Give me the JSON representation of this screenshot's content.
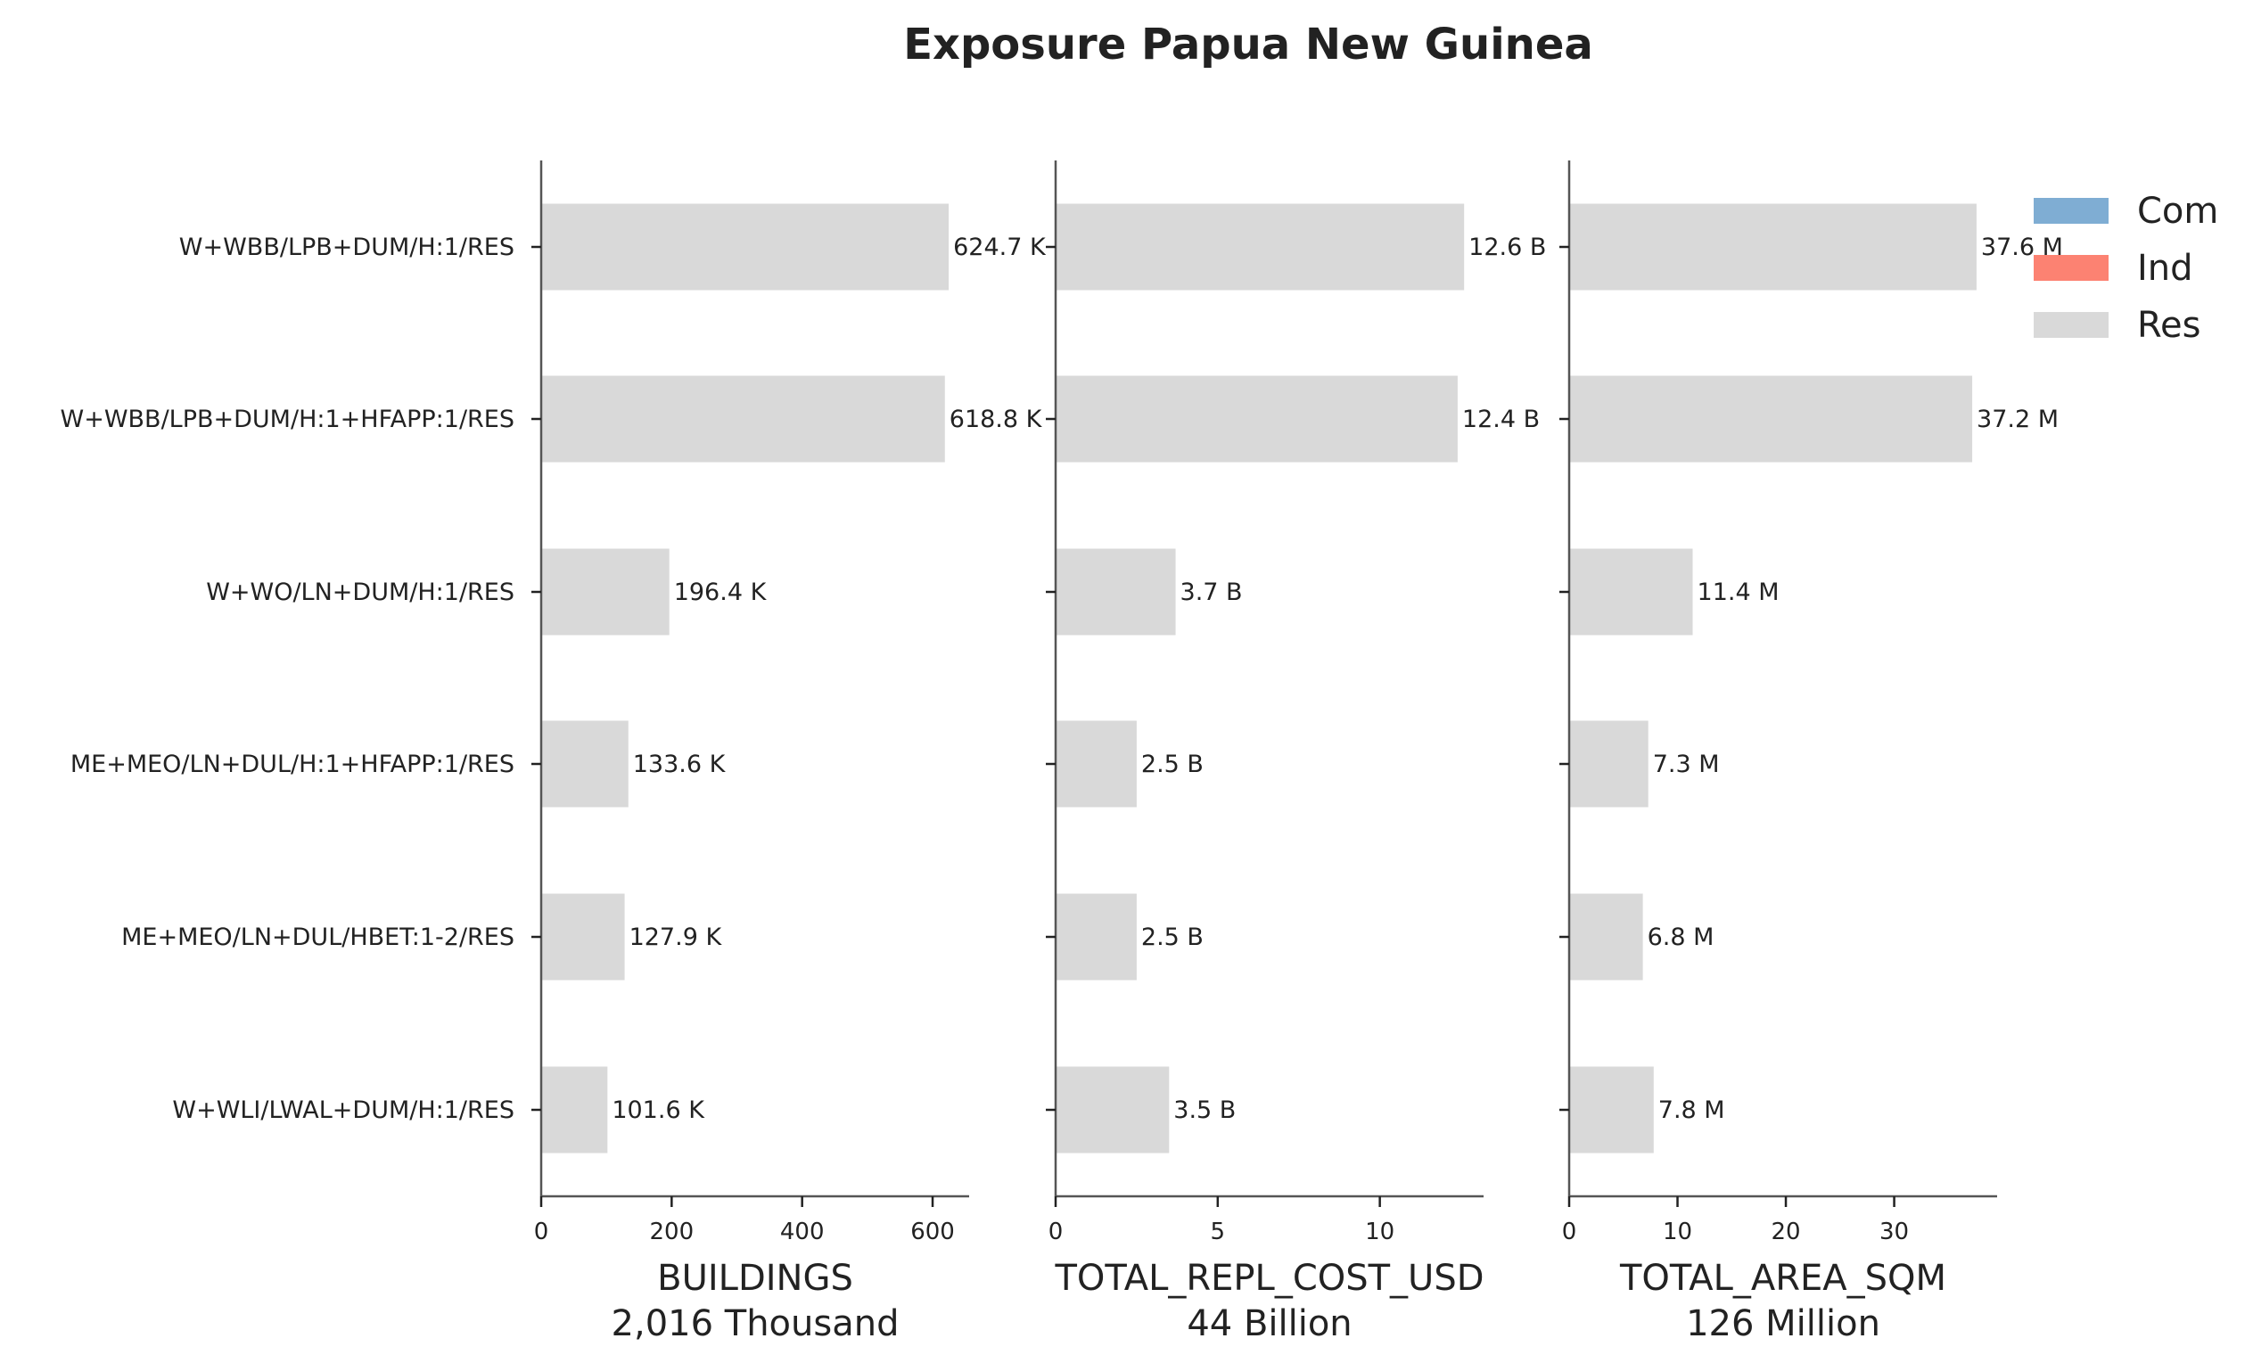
{
  "chart_data": {
    "type": "bar",
    "orientation": "horizontal",
    "title": "Exposure Papua New Guinea",
    "categories": [
      "W+WBB/LPB+DUM/H:1/RES",
      "W+WBB/LPB+DUM/H:1+HFAPP:1/RES",
      "W+WO/LN+DUM/H:1/RES",
      "ME+MEO/LN+DUL/H:1+HFAPP:1/RES",
      "ME+MEO/LN+DUL/HBET:1-2/RES",
      "W+WLI/LWAL+DUM/H:1/RES"
    ],
    "legend": {
      "placement": "top-right",
      "entries": [
        {
          "name": "Com",
          "color": "#7fadd3"
        },
        {
          "name": "Ind",
          "color": "#fc8272"
        },
        {
          "name": "Res",
          "color": "#d9d9d9"
        }
      ]
    },
    "panels": [
      {
        "xlabel": "BUILDINGS",
        "total_label": "2,016 Thousand",
        "xlim": [
          0,
          656
        ],
        "xticks": [
          0,
          200,
          400,
          600
        ],
        "series": [
          {
            "name": "Res",
            "color": "#d9d9d9",
            "values": [
              624.7,
              618.8,
              196.4,
              133.6,
              127.9,
              101.6
            ]
          }
        ],
        "value_labels": [
          "624.7 K",
          "618.8 K",
          "196.4 K",
          "133.6 K",
          "127.9 K",
          "101.6 K"
        ]
      },
      {
        "xlabel": "TOTAL_REPL_COST_USD",
        "total_label": "44 Billion",
        "xlim": [
          0,
          13.2
        ],
        "xticks": [
          0,
          5,
          10
        ],
        "series": [
          {
            "name": "Res",
            "color": "#d9d9d9",
            "values": [
              12.6,
              12.4,
              3.7,
              2.5,
              2.5,
              3.5
            ]
          }
        ],
        "value_labels": [
          "12.6 B",
          "12.4 B",
          "3.7 B",
          "2.5 B",
          "2.5 B",
          "3.5 B"
        ]
      },
      {
        "xlabel": "TOTAL_AREA_SQM",
        "total_label": "126 Million",
        "xlim": [
          0,
          39.5
        ],
        "xticks": [
          0,
          10,
          20,
          30
        ],
        "series": [
          {
            "name": "Res",
            "color": "#d9d9d9",
            "values": [
              37.6,
              37.2,
              11.4,
              7.3,
              6.8,
              7.8
            ]
          }
        ],
        "value_labels": [
          "37.6 M",
          "37.2 M",
          "11.4 M",
          "7.3 M",
          "6.8 M",
          "7.8 M"
        ]
      }
    ],
    "grid": false
  }
}
